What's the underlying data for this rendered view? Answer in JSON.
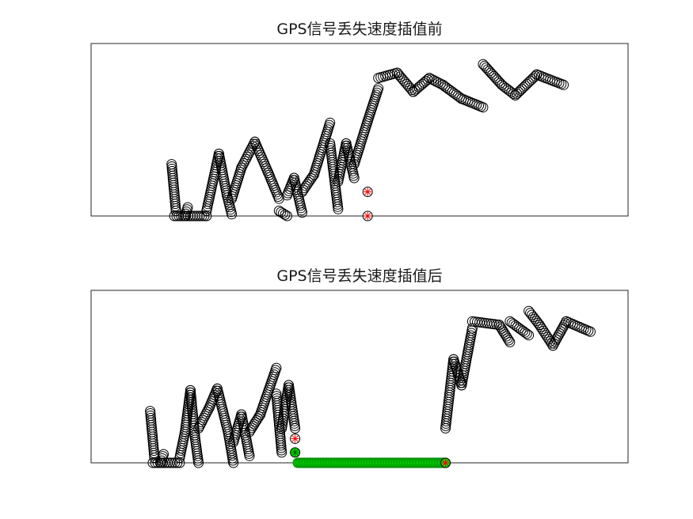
{
  "colors": {
    "marker": "#000000",
    "highlight_red": "#ff0000",
    "interpolated_green": "#00e400"
  },
  "chart_data": [
    {
      "type": "scatter",
      "title": "GPS信号丢失速度插值前",
      "xlabel": "",
      "ylabel": "",
      "xlim": [
        0,
        100
      ],
      "ylim": [
        0,
        100
      ],
      "axis_ticks": "hidden",
      "grid": false,
      "legend": "none",
      "marker": "open-circle",
      "segments": [
        {
          "x0": 15.0,
          "x1": 15.8,
          "y0": 30,
          "y1": 3
        },
        {
          "x0": 15.5,
          "x1": 21.5,
          "y0": 0,
          "y1": 0
        },
        {
          "x0": 17.5,
          "x1": 18.0,
          "y0": 0,
          "y1": 5
        },
        {
          "x0": 21.5,
          "x1": 23.8,
          "y0": 3,
          "y1": 36
        },
        {
          "x0": 23.8,
          "x1": 25.3,
          "y0": 36,
          "y1": 12
        },
        {
          "x0": 25.3,
          "x1": 26.2,
          "y0": 12,
          "y1": 1
        },
        {
          "x0": 26.2,
          "x1": 28.0,
          "y0": 10,
          "y1": 28
        },
        {
          "x0": 28.0,
          "x1": 30.5,
          "y0": 28,
          "y1": 43
        },
        {
          "x0": 30.5,
          "x1": 33.0,
          "y0": 43,
          "y1": 25
        },
        {
          "x0": 33.0,
          "x1": 35.0,
          "y0": 25,
          "y1": 10
        },
        {
          "x0": 35.0,
          "x1": 36.5,
          "y0": 3,
          "y1": 0
        },
        {
          "x0": 36.5,
          "x1": 37.8,
          "y0": 12,
          "y1": 22
        },
        {
          "x0": 37.8,
          "x1": 39.3,
          "y0": 22,
          "y1": 2
        },
        {
          "x0": 39.3,
          "x1": 41.5,
          "y0": 14,
          "y1": 24
        },
        {
          "x0": 41.5,
          "x1": 44.5,
          "y0": 24,
          "y1": 54
        },
        {
          "x0": 44.5,
          "x1": 46.0,
          "y0": 42,
          "y1": 4
        },
        {
          "x0": 46.0,
          "x1": 47.5,
          "y0": 20,
          "y1": 42
        },
        {
          "x0": 47.5,
          "x1": 49.0,
          "y0": 42,
          "y1": 22
        },
        {
          "x0": 49.0,
          "x1": 51.5,
          "y0": 30,
          "y1": 55
        },
        {
          "x0": 51.5,
          "x1": 53.5,
          "y0": 55,
          "y1": 74
        },
        {
          "x0": 53.5,
          "x1": 57.0,
          "y0": 80,
          "y1": 83
        },
        {
          "x0": 57.0,
          "x1": 60.0,
          "y0": 83,
          "y1": 72
        },
        {
          "x0": 60.0,
          "x1": 63.0,
          "y0": 72,
          "y1": 80
        },
        {
          "x0": 63.0,
          "x1": 65.5,
          "y0": 80,
          "y1": 76
        },
        {
          "x0": 65.5,
          "x1": 69.0,
          "y0": 76,
          "y1": 68
        },
        {
          "x0": 69.0,
          "x1": 73.0,
          "y0": 68,
          "y1": 63
        },
        {
          "x0": 73.0,
          "x1": 76.5,
          "y0": 88,
          "y1": 76
        },
        {
          "x0": 76.5,
          "x1": 79.0,
          "y0": 76,
          "y1": 70
        },
        {
          "x0": 79.0,
          "x1": 83.0,
          "y0": 70,
          "y1": 82
        },
        {
          "x0": 83.0,
          "x1": 88.0,
          "y0": 82,
          "y1": 76
        }
      ],
      "highlight_points": [
        {
          "x": 51.5,
          "y": 14,
          "color": "red"
        },
        {
          "x": 51.5,
          "y": 0,
          "color": "red"
        }
      ]
    },
    {
      "type": "scatter",
      "title": "GPS信号丢失速度插值后",
      "xlabel": "",
      "ylabel": "",
      "xlim": [
        0,
        100
      ],
      "ylim": [
        0,
        100
      ],
      "axis_ticks": "hidden",
      "grid": false,
      "legend": "none",
      "marker": "open-circle",
      "segments": [
        {
          "x0": 11.0,
          "x1": 11.8,
          "y0": 30,
          "y1": 3
        },
        {
          "x0": 11.5,
          "x1": 16.5,
          "y0": 0,
          "y1": 0
        },
        {
          "x0": 13.0,
          "x1": 13.5,
          "y0": 0,
          "y1": 5
        },
        {
          "x0": 16.5,
          "x1": 17.5,
          "y0": 3,
          "y1": 18
        },
        {
          "x0": 17.5,
          "x1": 18.5,
          "y0": 18,
          "y1": 42
        },
        {
          "x0": 18.5,
          "x1": 19.3,
          "y0": 42,
          "y1": 16
        },
        {
          "x0": 19.3,
          "x1": 20.0,
          "y0": 16,
          "y1": 0
        },
        {
          "x0": 20.0,
          "x1": 22.0,
          "y0": 20,
          "y1": 32
        },
        {
          "x0": 22.0,
          "x1": 23.5,
          "y0": 32,
          "y1": 43
        },
        {
          "x0": 23.5,
          "x1": 25.5,
          "y0": 43,
          "y1": 18
        },
        {
          "x0": 25.5,
          "x1": 26.5,
          "y0": 18,
          "y1": 0
        },
        {
          "x0": 26.5,
          "x1": 28.0,
          "y0": 12,
          "y1": 28
        },
        {
          "x0": 28.0,
          "x1": 29.5,
          "y0": 28,
          "y1": 4
        },
        {
          "x0": 29.5,
          "x1": 31.5,
          "y0": 18,
          "y1": 28
        },
        {
          "x0": 31.5,
          "x1": 34.5,
          "y0": 28,
          "y1": 55
        },
        {
          "x0": 34.5,
          "x1": 35.5,
          "y0": 40,
          "y1": 6
        },
        {
          "x0": 35.5,
          "x1": 36.8,
          "y0": 20,
          "y1": 45
        },
        {
          "x0": 36.8,
          "x1": 38.0,
          "y0": 45,
          "y1": 20
        },
        {
          "x0": 66.0,
          "x1": 67.5,
          "y0": 20,
          "y1": 60
        },
        {
          "x0": 67.5,
          "x1": 69.0,
          "y0": 60,
          "y1": 45
        },
        {
          "x0": 69.0,
          "x1": 71.0,
          "y0": 45,
          "y1": 78
        },
        {
          "x0": 71.0,
          "x1": 76.0,
          "y0": 82,
          "y1": 80
        },
        {
          "x0": 76.0,
          "x1": 78.0,
          "y0": 80,
          "y1": 70
        },
        {
          "x0": 78.0,
          "x1": 81.5,
          "y0": 82,
          "y1": 74
        },
        {
          "x0": 81.5,
          "x1": 83.5,
          "y0": 88,
          "y1": 80
        },
        {
          "x0": 83.5,
          "x1": 86.0,
          "y0": 80,
          "y1": 68
        },
        {
          "x0": 86.0,
          "x1": 88.5,
          "y0": 68,
          "y1": 82
        },
        {
          "x0": 88.5,
          "x1": 93.0,
          "y0": 82,
          "y1": 76
        }
      ],
      "interpolated": {
        "x_start": 38.5,
        "x_end": 66.0,
        "y": 0,
        "color": "green"
      },
      "highlight_points": [
        {
          "x": 38.0,
          "y": 14,
          "color": "red"
        },
        {
          "x": 38.0,
          "y": 6,
          "color": "green"
        },
        {
          "x": 66.0,
          "y": 0,
          "color": "red"
        }
      ]
    }
  ]
}
